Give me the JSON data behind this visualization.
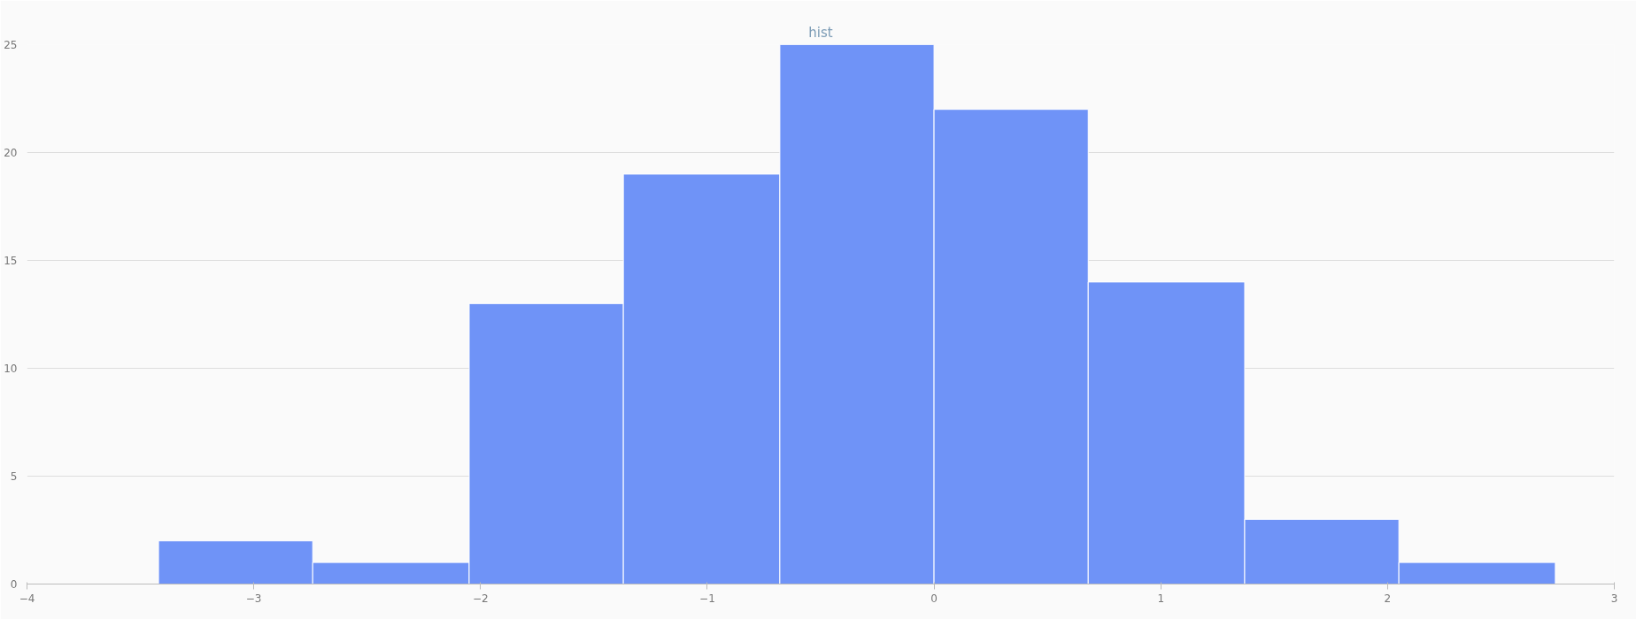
{
  "chart_data": {
    "type": "histogram",
    "title": "hist",
    "bins": [
      -3.42,
      -2.74,
      -2.05,
      -1.37,
      -0.68,
      0.0,
      0.68,
      1.37,
      2.05,
      2.74
    ],
    "values": [
      2,
      1,
      13,
      19,
      25,
      22,
      14,
      3,
      1
    ],
    "color": "#6f93f7",
    "xlim": [
      -4,
      3
    ],
    "xticks": [
      -4,
      -3,
      -2,
      -1,
      0,
      1,
      2,
      3
    ],
    "ylim": [
      0,
      25
    ],
    "yticks": [
      0,
      5,
      10,
      15,
      20,
      25
    ],
    "grid": "y"
  }
}
